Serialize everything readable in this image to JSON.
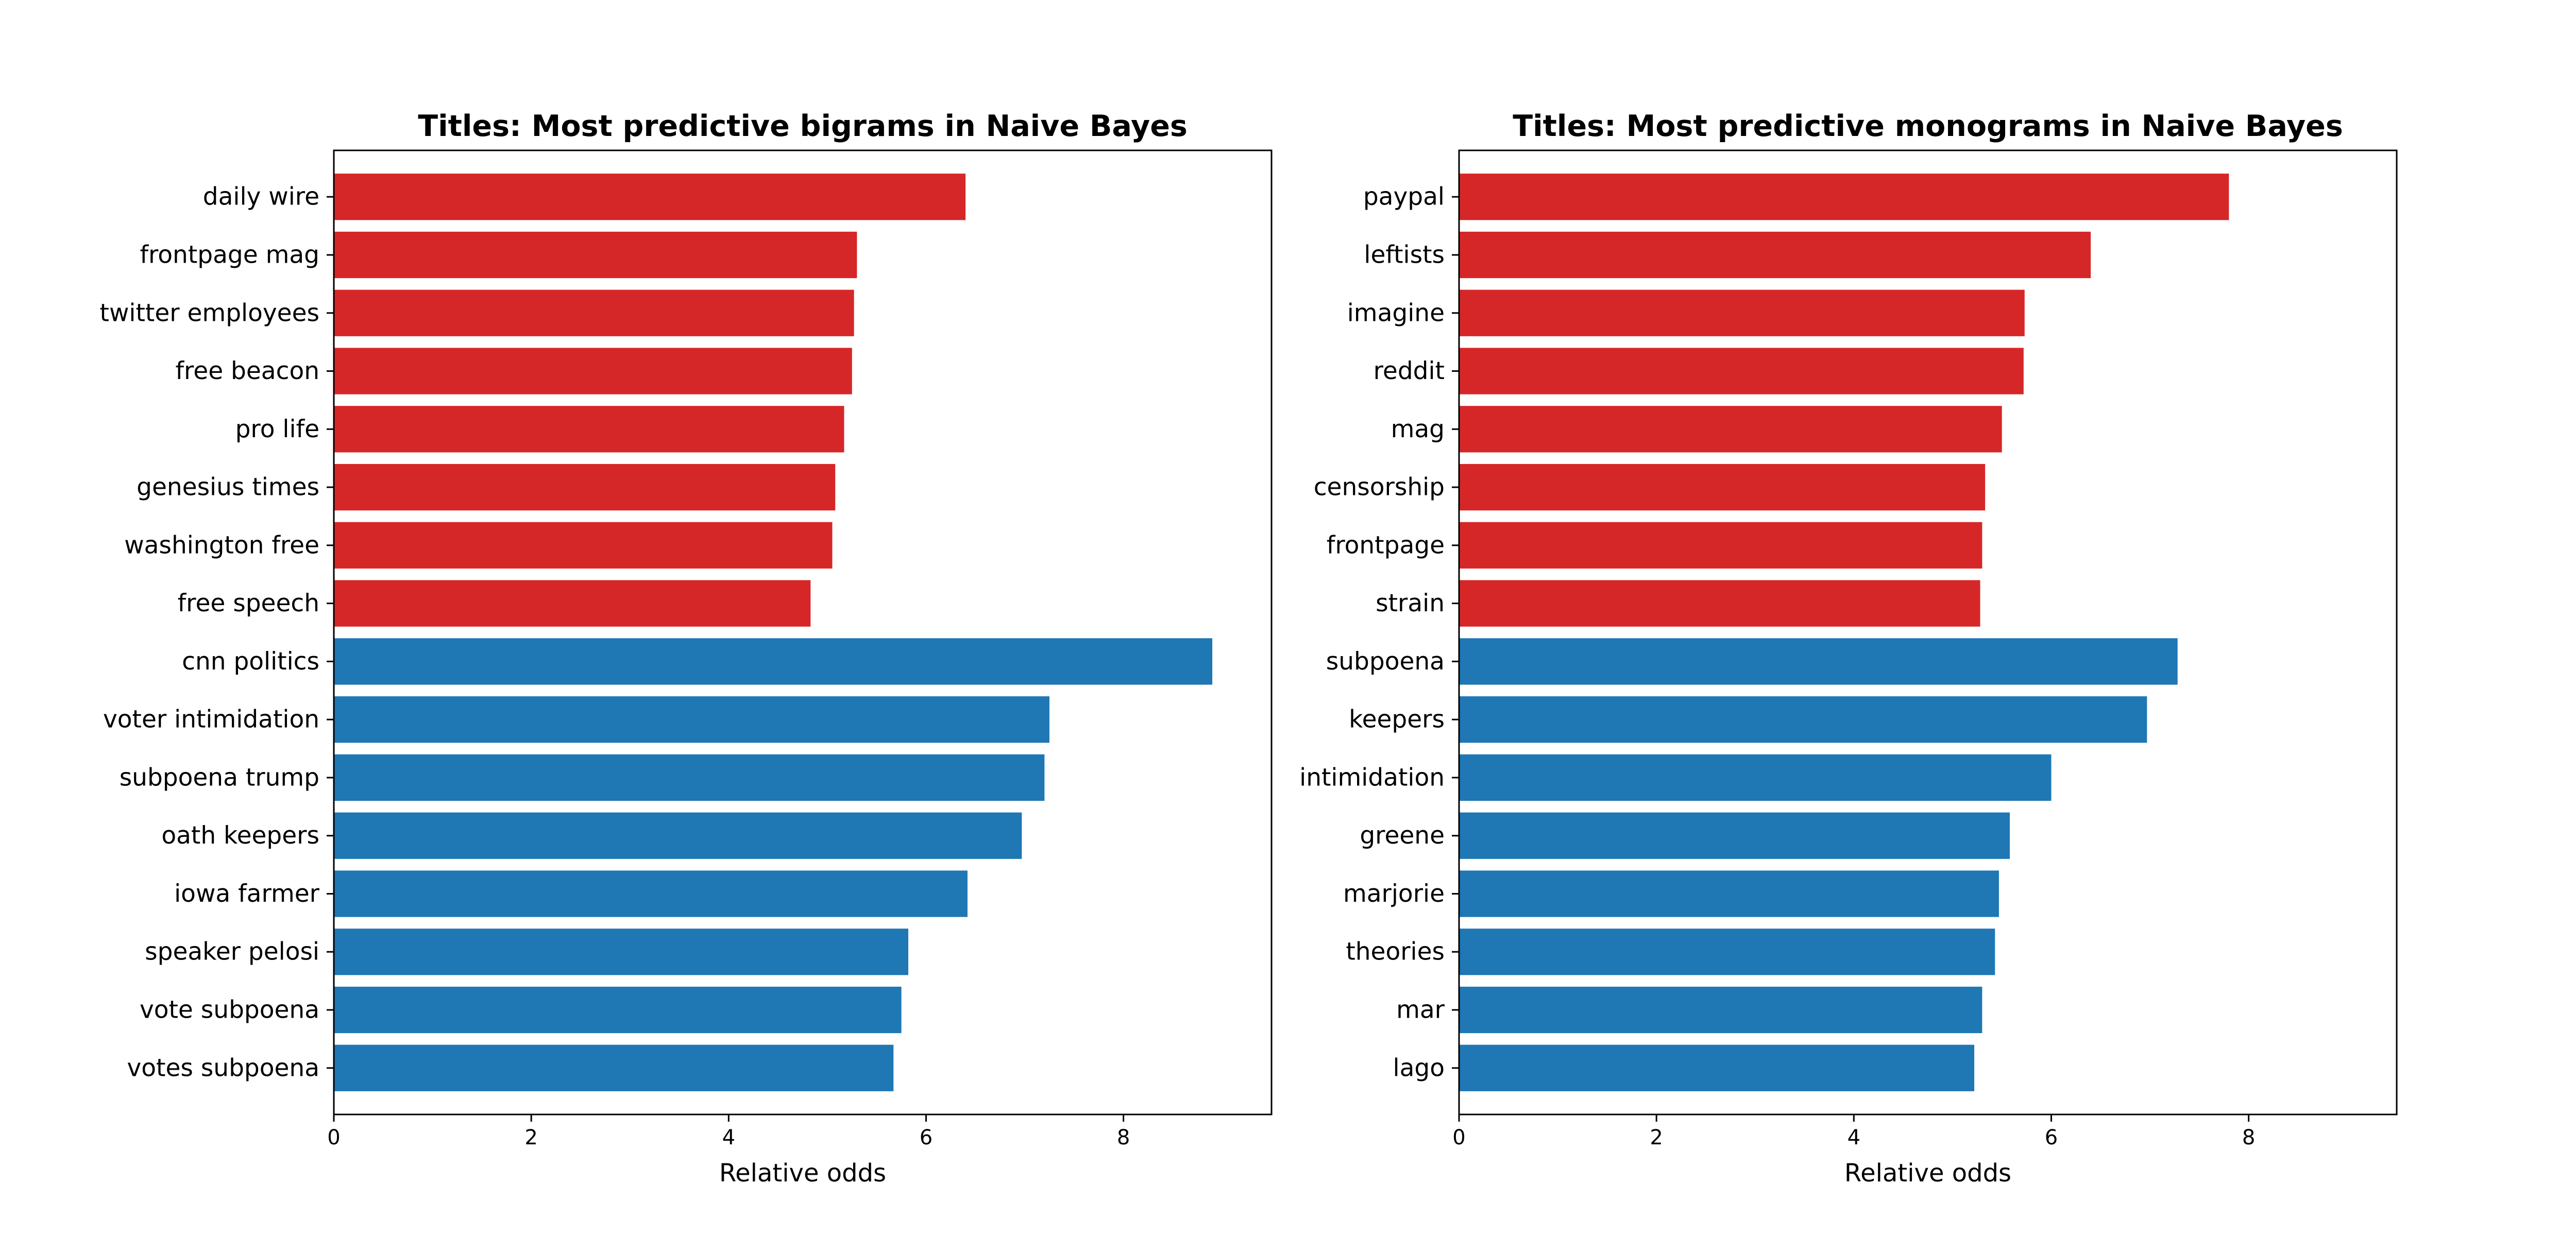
{
  "colors": {
    "conservative": "#d62728",
    "liberal": "#1f77b4"
  },
  "chart_data": [
    {
      "type": "bar",
      "orientation": "horizontal",
      "title": "Titles: Most predictive bigrams in Naive Bayes",
      "xlabel": "Relative odds",
      "ylabel": "",
      "xlim": [
        0,
        9.5
      ],
      "xticks": [
        0,
        2,
        4,
        6,
        8
      ],
      "grid": false,
      "categories": [
        "daily wire",
        "frontpage mag",
        "twitter employees",
        "free beacon",
        "pro life",
        "genesius times",
        "washington free",
        "free speech",
        "cnn politics",
        "voter intimidation",
        "subpoena trump",
        "oath keepers",
        "iowa farmer",
        "speaker pelosi",
        "vote subpoena",
        "votes subpoena"
      ],
      "values": [
        6.4,
        5.3,
        5.27,
        5.25,
        5.17,
        5.08,
        5.05,
        4.83,
        8.9,
        7.25,
        7.2,
        6.97,
        6.42,
        5.82,
        5.75,
        5.67
      ],
      "bar_colors": [
        "#d62728",
        "#d62728",
        "#d62728",
        "#d62728",
        "#d62728",
        "#d62728",
        "#d62728",
        "#d62728",
        "#1f77b4",
        "#1f77b4",
        "#1f77b4",
        "#1f77b4",
        "#1f77b4",
        "#1f77b4",
        "#1f77b4",
        "#1f77b4"
      ]
    },
    {
      "type": "bar",
      "orientation": "horizontal",
      "title": "Titles: Most predictive monograms in Naive Bayes",
      "xlabel": "Relative odds",
      "ylabel": "",
      "xlim": [
        0,
        9.5
      ],
      "xticks": [
        0,
        2,
        4,
        6,
        8
      ],
      "grid": false,
      "categories": [
        "paypal",
        "leftists",
        "imagine",
        "reddit",
        "mag",
        "censorship",
        "frontpage",
        "strain",
        "subpoena",
        "keepers",
        "intimidation",
        "greene",
        "marjorie",
        "theories",
        "mar",
        "lago"
      ],
      "values": [
        7.8,
        6.4,
        5.73,
        5.72,
        5.5,
        5.33,
        5.3,
        5.28,
        7.28,
        6.97,
        6.0,
        5.58,
        5.47,
        5.43,
        5.3,
        5.22
      ],
      "bar_colors": [
        "#d62728",
        "#d62728",
        "#d62728",
        "#d62728",
        "#d62728",
        "#d62728",
        "#d62728",
        "#d62728",
        "#1f77b4",
        "#1f77b4",
        "#1f77b4",
        "#1f77b4",
        "#1f77b4",
        "#1f77b4",
        "#1f77b4",
        "#1f77b4"
      ]
    }
  ]
}
